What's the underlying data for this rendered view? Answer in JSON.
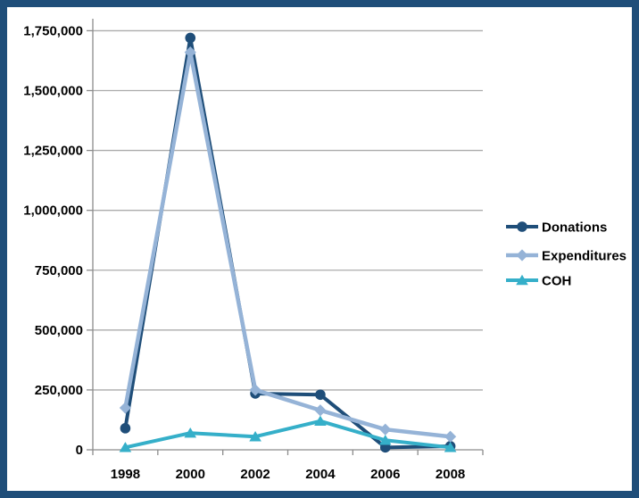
{
  "chart_data": {
    "type": "line",
    "title": "",
    "xlabel": "",
    "ylabel": "",
    "categories": [
      "1998",
      "2000",
      "2002",
      "2004",
      "2006",
      "2008"
    ],
    "series": [
      {
        "name": "Donations",
        "color": "#1F4E79",
        "marker": "circle",
        "line_width": 4,
        "values": [
          90000,
          1720000,
          235000,
          230000,
          10000,
          15000
        ]
      },
      {
        "name": "Expenditures",
        "color": "#95B3D7",
        "marker": "diamond",
        "line_width": 4.5,
        "values": [
          175000,
          1660000,
          250000,
          165000,
          85000,
          55000
        ]
      },
      {
        "name": "COH",
        "color": "#35AFC9",
        "marker": "triangle",
        "line_width": 4,
        "values": [
          10000,
          70000,
          55000,
          120000,
          40000,
          10000
        ]
      }
    ],
    "ylim": [
      0,
      1800000
    ],
    "ytick_step": 250000,
    "ytick_labels": [
      "0",
      "250,000",
      "500,000",
      "750,000",
      "1,000,000",
      "1,250,000",
      "1,500,000",
      "1,750,000"
    ],
    "grid": "horizontal",
    "legend_position": "right",
    "colors": {
      "frame": "#1F4E79",
      "background": "#FFFFFF",
      "axis": "#8C8C8C",
      "gridline": "#ABABAB",
      "text": "#000000"
    }
  }
}
